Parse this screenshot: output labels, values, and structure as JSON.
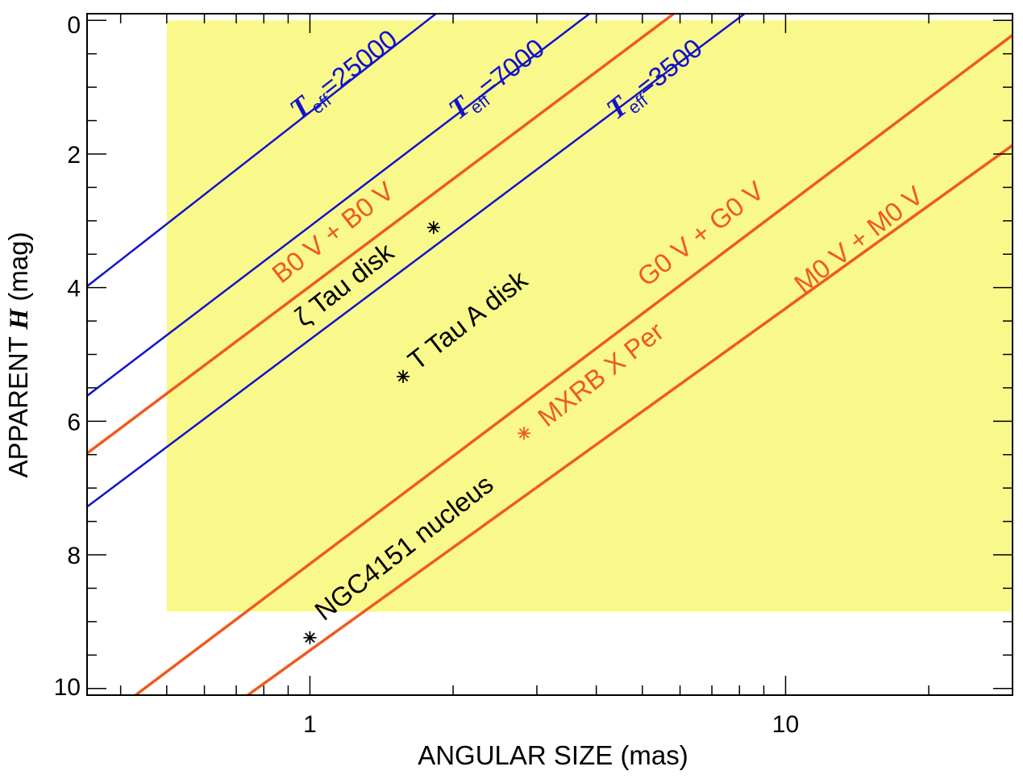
{
  "chart_data": {
    "type": "line",
    "xlabel": "ANGULAR SIZE (mas)",
    "ylabel_prefix": "APPARENT ",
    "ylabel_var": "H",
    "ylabel_suffix": " (mag)",
    "x_scale": "log",
    "xlim": [
      0.34,
      30
    ],
    "ylim": [
      10.1,
      -0.1
    ],
    "x_ticks": [
      {
        "value": 1,
        "label": "1"
      },
      {
        "value": 10,
        "label": "10"
      }
    ],
    "y_ticks": [
      {
        "value": 0,
        "label": "0"
      },
      {
        "value": 2,
        "label": "2"
      },
      {
        "value": 4,
        "label": "4"
      },
      {
        "value": 6,
        "label": "6"
      },
      {
        "value": 8,
        "label": "8"
      },
      {
        "value": 10,
        "label": "10"
      }
    ],
    "shaded_region": {
      "x": [
        0.5,
        30
      ],
      "y": [
        0.0,
        8.85
      ],
      "color": "#f9f98b"
    },
    "colors": {
      "blue": "#1212cc",
      "orange": "#f05a1e",
      "black": "#000000"
    },
    "series": [
      {
        "id": "teff25000",
        "color": "#1212cc",
        "width": 2.5,
        "x": [
          0.34,
          1.84
        ],
        "y": [
          3.98,
          -0.1
        ]
      },
      {
        "id": "teff7000",
        "color": "#1212cc",
        "width": 2.5,
        "x": [
          0.34,
          3.87
        ],
        "y": [
          5.62,
          -0.1
        ]
      },
      {
        "id": "b0v",
        "color": "#f05a1e",
        "width": 3.5,
        "x": [
          0.34,
          5.82
        ],
        "y": [
          6.48,
          -0.1
        ]
      },
      {
        "id": "teff3500",
        "color": "#1212cc",
        "width": 2.5,
        "x": [
          0.34,
          8.2
        ],
        "y": [
          7.28,
          -0.1
        ]
      },
      {
        "id": "g0v",
        "color": "#f05a1e",
        "width": 3.5,
        "x": [
          0.43,
          30
        ],
        "y": [
          10.1,
          0.22
        ]
      },
      {
        "id": "m0v",
        "color": "#f05a1e",
        "width": 3.5,
        "x": [
          0.74,
          30
        ],
        "y": [
          10.1,
          1.87
        ]
      }
    ],
    "points": [
      {
        "name": "zeta-tau-disk-point",
        "x": 1.82,
        "y": 3.1,
        "color": "#000000"
      },
      {
        "name": "t-tau-a-disk-point",
        "x": 1.57,
        "y": 5.33,
        "color": "#000000"
      },
      {
        "name": "mxrb-x-per-point",
        "x": 2.82,
        "y": 6.18,
        "color": "#f05a1e"
      },
      {
        "name": "ngc4151-nucleus-point",
        "x": 1.0,
        "y": 9.24,
        "color": "#000000"
      }
    ],
    "teff_labels": [
      {
        "name": "teff-25000-label",
        "main": "T",
        "sub": "eff",
        "rest": "=25000",
        "x": 0.95,
        "y": 1.5,
        "color": "#1212cc"
      },
      {
        "name": "teff-7000-label",
        "main": "T",
        "sub": "eff",
        "rest": "=7000",
        "x": 2.05,
        "y": 1.5,
        "color": "#1212cc"
      },
      {
        "name": "teff-3500-label",
        "main": "T",
        "sub": "eff",
        "rest": "=3500",
        "x": 4.4,
        "y": 1.5,
        "color": "#1212cc"
      }
    ],
    "annotations": [
      {
        "name": "b0v-label",
        "text": "B0 V + B0 V",
        "x": 0.87,
        "y": 3.95,
        "color": "#f05a1e"
      },
      {
        "name": "zeta-tau-disk-label",
        "text": "ζ Tau disk",
        "x": 0.97,
        "y": 4.6,
        "color": "#000000"
      },
      {
        "name": "t-tau-a-disk-label",
        "text": "T Tau A disk",
        "x": 1.68,
        "y": 5.25,
        "color": "#000000"
      },
      {
        "name": "g0v-label",
        "text": "G0 V + G0 V",
        "x": 5.1,
        "y": 4.0,
        "color": "#f05a1e"
      },
      {
        "name": "m0v-label",
        "text": "M0 V + M0 V",
        "x": 10.9,
        "y": 4.1,
        "color": "#f05a1e"
      },
      {
        "name": "mxrb-x-per-label",
        "text": "MXRB X Per",
        "x": 3.15,
        "y": 6.1,
        "color": "#f05a1e"
      },
      {
        "name": "ngc4151-nucleus-label",
        "text": "NGC4151 nucleus",
        "x": 1.07,
        "y": 9.0,
        "color": "#000000"
      }
    ]
  }
}
